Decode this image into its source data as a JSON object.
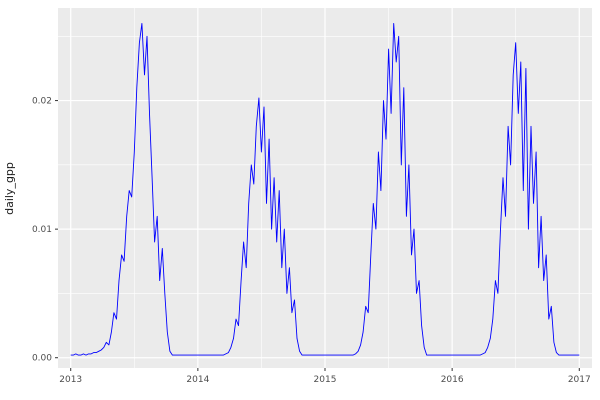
{
  "figure": {
    "background": "#FFFFFF",
    "panel_background": "#EBEBEB",
    "grid_major_color": "#FFFFFF",
    "grid_minor_color": "#FFFFFF",
    "axis_tick_color": "#333333",
    "tick_label_color": "#4D4D4D",
    "axis_title_color": "#1A1A1A",
    "line_color": "#0000FF"
  },
  "chart_data": {
    "type": "line",
    "title": "",
    "xlabel": "",
    "ylabel": "daily_gpp",
    "legend": "none",
    "grid": true,
    "x_ticks": [
      2013,
      2014,
      2015,
      2016,
      2017
    ],
    "x_tick_labels": [
      "2013",
      "2014",
      "2015",
      "2016",
      "2017"
    ],
    "x_minor_ticks": [
      2013.5,
      2014.5,
      2015.5,
      2016.5
    ],
    "y_ticks": [
      0.0,
      0.01,
      0.02
    ],
    "y_tick_labels": [
      "0.00",
      "0.01",
      "0.02"
    ],
    "y_minor_ticks": [
      0.005,
      0.015,
      0.025
    ],
    "xlim": [
      2012.9,
      2017.1
    ],
    "ylim": [
      -0.0008,
      0.0272
    ],
    "x_start": 2013.0,
    "x_step": 0.02,
    "series": [
      {
        "name": "daily_gpp",
        "color": "#0000FF",
        "values": [
          0.0002,
          0.0002,
          0.0003,
          0.0002,
          0.0002,
          0.0003,
          0.0002,
          0.0003,
          0.0003,
          0.0004,
          0.0004,
          0.0005,
          0.0006,
          0.0008,
          0.0012,
          0.001,
          0.002,
          0.0035,
          0.003,
          0.006,
          0.008,
          0.0075,
          0.011,
          0.013,
          0.0125,
          0.016,
          0.021,
          0.0245,
          0.026,
          0.022,
          0.025,
          0.019,
          0.014,
          0.009,
          0.011,
          0.006,
          0.0085,
          0.005,
          0.002,
          0.0005,
          0.0002,
          0.0002,
          0.0002,
          0.0002,
          0.0002,
          0.0002,
          0.0002,
          0.0002,
          0.0002,
          0.0002,
          0.0002,
          0.0002,
          0.0002,
          0.0002,
          0.0002,
          0.0002,
          0.0002,
          0.0002,
          0.0002,
          0.0002,
          0.0002,
          0.0003,
          0.0004,
          0.0008,
          0.0015,
          0.003,
          0.0025,
          0.006,
          0.009,
          0.007,
          0.012,
          0.015,
          0.0135,
          0.018,
          0.0202,
          0.016,
          0.0195,
          0.012,
          0.017,
          0.01,
          0.014,
          0.009,
          0.013,
          0.007,
          0.01,
          0.005,
          0.007,
          0.0035,
          0.0045,
          0.0015,
          0.0005,
          0.0002,
          0.0002,
          0.0002,
          0.0002,
          0.0002,
          0.0002,
          0.0002,
          0.0002,
          0.0002,
          0.0002,
          0.0002,
          0.0002,
          0.0002,
          0.0002,
          0.0002,
          0.0002,
          0.0002,
          0.0002,
          0.0002,
          0.0002,
          0.0002,
          0.0003,
          0.0005,
          0.001,
          0.002,
          0.004,
          0.0035,
          0.008,
          0.012,
          0.01,
          0.016,
          0.013,
          0.02,
          0.017,
          0.024,
          0.019,
          0.026,
          0.023,
          0.025,
          0.015,
          0.021,
          0.011,
          0.015,
          0.008,
          0.01,
          0.005,
          0.006,
          0.0025,
          0.0008,
          0.0002,
          0.0002,
          0.0002,
          0.0002,
          0.0002,
          0.0002,
          0.0002,
          0.0002,
          0.0002,
          0.0002,
          0.0002,
          0.0002,
          0.0002,
          0.0002,
          0.0002,
          0.0002,
          0.0002,
          0.0002,
          0.0002,
          0.0002,
          0.0002,
          0.0002,
          0.0003,
          0.0004,
          0.0008,
          0.0015,
          0.003,
          0.006,
          0.005,
          0.01,
          0.014,
          0.011,
          0.018,
          0.015,
          0.022,
          0.0245,
          0.019,
          0.023,
          0.013,
          0.0225,
          0.01,
          0.018,
          0.012,
          0.016,
          0.007,
          0.011,
          0.006,
          0.008,
          0.003,
          0.004,
          0.0012,
          0.0004,
          0.0002,
          0.0002,
          0.0002,
          0.0002,
          0.0002,
          0.0002,
          0.0002,
          0.0002,
          0.0002
        ]
      }
    ]
  }
}
